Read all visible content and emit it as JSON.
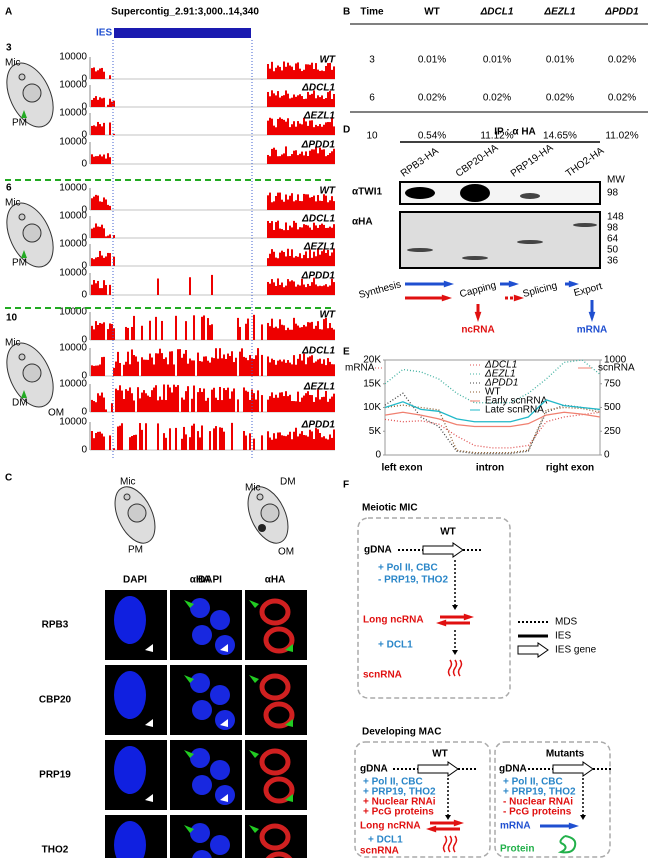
{
  "panel_a": {
    "letter": "A",
    "title": "Supercontig_2.91:3,000..14,340",
    "ies": "IES",
    "y_ticks": [
      10000,
      0
    ],
    "groups": [
      {
        "time": "3",
        "cell_labels": [
          "Mic",
          "PM"
        ],
        "tracks": [
          "WT",
          "ΔDCL1",
          "ΔEZL1",
          "ΔPDD1"
        ]
      },
      {
        "time": "6",
        "cell_labels": [
          "Mic",
          "PM"
        ],
        "tracks": [
          "WT",
          "ΔDCL1",
          "ΔEZL1",
          "ΔPDD1"
        ]
      },
      {
        "time": "10",
        "cell_labels": [
          "Mic",
          "DM",
          "OM"
        ],
        "tracks": [
          "WT",
          "ΔDCL1",
          "ΔEZL1",
          "ΔPDD1"
        ]
      }
    ]
  },
  "panel_b": {
    "letter": "B",
    "table": {
      "header": [
        "Time",
        "WT",
        "ΔDCL1",
        "ΔEZL1",
        "ΔPDD1"
      ],
      "rows": [
        [
          "3",
          "0.01%",
          "0.01%",
          "0.01%",
          "0.02%"
        ],
        [
          "6",
          "0.02%",
          "0.02%",
          "0.02%",
          "0.02%"
        ],
        [
          "10",
          "0.54%",
          "11.12%",
          "14.65%",
          "11.02%"
        ]
      ]
    }
  },
  "panel_c": {
    "letter": "C",
    "cell_labels_left": [
      "Mic",
      "PM"
    ],
    "cell_labels_right": [
      "Mic",
      "DM",
      "OM"
    ],
    "columns": [
      "DAPI",
      "αHA",
      "DAPI",
      "αHA"
    ],
    "rows": [
      "RPB3",
      "CBP20",
      "PRP19",
      "THO2"
    ]
  },
  "panel_d": {
    "letter": "D",
    "ip": "IP : α HA",
    "lanes": [
      "RPB3-HA",
      "CBP20-HA",
      "PRP19-HA",
      "THO2-HA"
    ],
    "mw": "MW",
    "blots": [
      {
        "label": "αTWI1",
        "mw": [
          98
        ]
      },
      {
        "label": "αHA",
        "mw": [
          148,
          98,
          64,
          50,
          36
        ]
      }
    ],
    "pathway": {
      "steps": [
        "Synthesis",
        "Capping",
        "Splicing",
        "Export"
      ],
      "products": [
        "ncRNA",
        "mRNA"
      ]
    }
  },
  "panel_e": {
    "letter": "E",
    "chart": {
      "type": "line",
      "ylabel": "mRNA",
      "y2label": "scnRNA",
      "x_labels": [
        "left exon",
        "intron",
        "right exon"
      ],
      "ylim": [
        0,
        20000
      ],
      "yticks": [
        0,
        {
          "value": 5000,
          "label": "5K"
        },
        {
          "value": 10000,
          "label": "10K"
        },
        {
          "value": 15000,
          "label": "15K"
        },
        {
          "value": 20000,
          "label": "20K"
        }
      ],
      "y2lim": [
        0,
        1000
      ],
      "y2ticks": [
        0,
        250,
        500,
        750,
        1000
      ],
      "series": [
        {
          "name": "ΔDCL1",
          "color": "#e05050",
          "style": "dotted",
          "values": [
            7500,
            7000,
            7200,
            6500,
            4000,
            2000,
            1500,
            1500,
            2000,
            7000,
            8000,
            8500,
            9000
          ]
        },
        {
          "name": "ΔEZL1",
          "color": "#40b0a0",
          "style": "dotted",
          "values": [
            15000,
            18000,
            17500,
            16000,
            13000,
            11000,
            11000,
            11000,
            13000,
            16000,
            19500,
            20000,
            17000
          ]
        },
        {
          "name": "ΔPDD1",
          "color": "#404040",
          "style": "dotted",
          "values": [
            10500,
            13000,
            8000,
            6000,
            800,
            300,
            300,
            300,
            800,
            9000,
            10500,
            10000,
            9500
          ]
        },
        {
          "name": "WT",
          "color": "#8b5a2b",
          "style": "dotted",
          "values": [
            10000,
            10500,
            10000,
            9500,
            1000,
            500,
            500,
            500,
            1000,
            9500,
            10000,
            9800,
            9000
          ]
        },
        {
          "name": "Early scnRNA",
          "color": "#f08070",
          "style": "solid",
          "axis": "y2",
          "values": [
            420,
            450,
            420,
            380,
            320,
            300,
            300,
            300,
            330,
            420,
            450,
            430,
            400
          ]
        },
        {
          "name": "Late scnRNA",
          "color": "#20b8c8",
          "style": "solid",
          "axis": "y2",
          "values": [
            500,
            560,
            480,
            460,
            380,
            350,
            350,
            350,
            400,
            580,
            520,
            500,
            480
          ]
        }
      ]
    }
  },
  "panel_f": {
    "letter": "F",
    "meiotic": {
      "title": "Meiotic MIC",
      "wt": "WT",
      "gdna": "gDNA",
      "factors": [
        "+ Pol II, CBC",
        "- PRP19, THO2"
      ],
      "long": "Long ncRNA",
      "dcl": "+ DCL1",
      "scn": "scnRNA"
    },
    "legend": [
      "MDS",
      "IES",
      "IES gene"
    ],
    "developing": {
      "title": "Developing MAC",
      "wt": {
        "label": "WT",
        "gdna": "gDNA",
        "factors": [
          "+ Pol II, CBC",
          "+ PRP19, THO2",
          "+ Nuclear RNAi",
          "+ PcG proteins"
        ],
        "long": "Long ncRNA",
        "dcl": "+ DCL1",
        "scn": "scnRNA"
      },
      "mutants": {
        "label": "Mutants",
        "gdna": "gDNA",
        "factors": [
          "+ Pol II, CBC",
          "+ PRP19, THO2",
          "- Nuclear RNAi",
          "- PcG proteins"
        ],
        "mrna": "mRNA",
        "protein": "Protein"
      }
    }
  }
}
